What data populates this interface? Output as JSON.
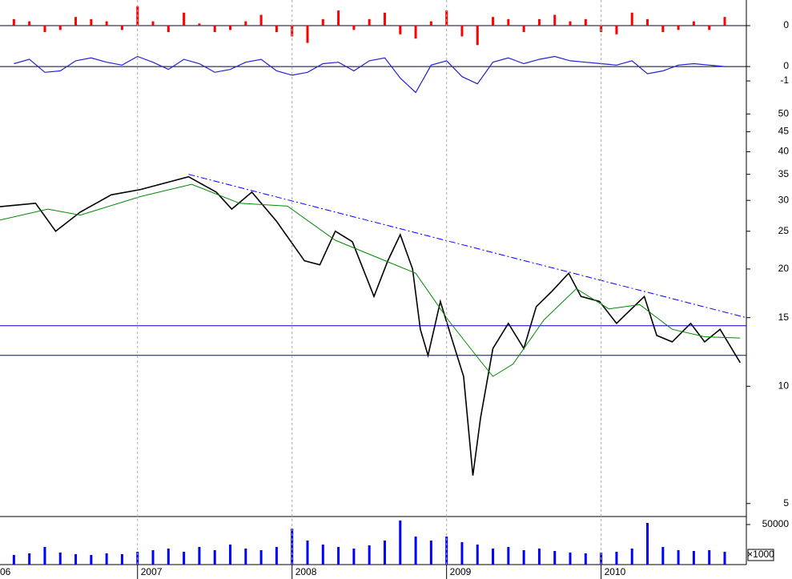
{
  "chart_data": [
    {
      "type": "bar",
      "color": "#ff0000",
      "xlim": [
        2006.11,
        2010.94
      ],
      "ylim": [
        -1,
        1
      ],
      "yticks": [
        0
      ],
      "x": [
        2006.2,
        2006.3,
        2006.4,
        2006.5,
        2006.6,
        2006.7,
        2006.8,
        2006.9,
        2007.0,
        2007.1,
        2007.2,
        2007.3,
        2007.4,
        2007.5,
        2007.6,
        2007.7,
        2007.8,
        2007.9,
        2008.0,
        2008.1,
        2008.2,
        2008.3,
        2008.4,
        2008.5,
        2008.6,
        2008.7,
        2008.8,
        2008.9,
        2009.0,
        2009.1,
        2009.2,
        2009.3,
        2009.4,
        2009.5,
        2009.6,
        2009.7,
        2009.8,
        2009.9,
        2010.0,
        2010.1,
        2010.2,
        2010.3,
        2010.4,
        2010.5,
        2010.6,
        2010.7,
        2010.8
      ],
      "values": [
        0.3,
        0.2,
        -0.3,
        -0.2,
        0.4,
        0.3,
        0.2,
        -0.2,
        0.9,
        0.2,
        -0.3,
        0.6,
        0.1,
        -0.3,
        -0.2,
        0.2,
        0.5,
        -0.3,
        -0.5,
        -0.8,
        0.3,
        0.7,
        -0.2,
        0.3,
        0.6,
        -0.4,
        -0.6,
        0.2,
        0.7,
        -0.5,
        -0.9,
        0.4,
        0.3,
        -0.3,
        0.3,
        0.5,
        0.2,
        0.3,
        -0.3,
        -0.4,
        0.6,
        0.3,
        -0.3,
        -0.2,
        0.2,
        -0.2,
        0.4
      ]
    },
    {
      "type": "line",
      "color": "#2222cc",
      "xlim": [
        2006.11,
        2010.94
      ],
      "ylim": [
        -2.44,
        1.17
      ],
      "yticks": [
        0,
        -1
      ],
      "x": [
        2006.2,
        2006.3,
        2006.4,
        2006.5,
        2006.6,
        2006.7,
        2006.8,
        2006.9,
        2007.0,
        2007.1,
        2007.2,
        2007.3,
        2007.4,
        2007.5,
        2007.6,
        2007.7,
        2007.8,
        2007.9,
        2008.0,
        2008.1,
        2008.2,
        2008.3,
        2008.4,
        2008.5,
        2008.6,
        2008.7,
        2008.8,
        2008.9,
        2009.0,
        2009.1,
        2009.2,
        2009.3,
        2009.4,
        2009.5,
        2009.6,
        2009.7,
        2009.8,
        2009.9,
        2010.0,
        2010.1,
        2010.2,
        2010.3,
        2010.4,
        2010.5,
        2010.6,
        2010.7,
        2010.8
      ],
      "values": [
        0.2,
        0.5,
        -0.4,
        -0.3,
        0.4,
        0.6,
        0.3,
        0.1,
        0.7,
        0.3,
        -0.2,
        0.5,
        0.2,
        -0.4,
        -0.2,
        0.3,
        0.5,
        -0.3,
        -0.6,
        -0.4,
        0.2,
        0.3,
        -0.3,
        0.4,
        0.6,
        -0.8,
        -1.8,
        0.1,
        0.4,
        -0.7,
        -1.2,
        0.3,
        0.6,
        0.2,
        0.5,
        0.7,
        0.4,
        0.3,
        0.2,
        0.1,
        0.4,
        -0.5,
        -0.3,
        0.1,
        0.2,
        0.1,
        0.0
      ]
    },
    {
      "type": "line",
      "log_scale": true,
      "xlim": [
        2006.11,
        2010.94
      ],
      "ylim": [
        4.63,
        53
      ],
      "yticks": [
        5,
        10,
        15,
        20,
        25,
        30,
        35,
        40,
        45,
        50
      ],
      "series": [
        {
          "color": "#000000",
          "x": [
            2006.11,
            2006.34,
            2006.47,
            2006.63,
            2006.83,
            2007.02,
            2007.33,
            2007.51,
            2007.61,
            2007.74,
            2007.9,
            2008.08,
            2008.18,
            2008.28,
            2008.39,
            2008.53,
            2008.62,
            2008.7,
            2008.78,
            2008.83,
            2008.88,
            2008.96,
            2009.04,
            2009.11,
            2009.17,
            2009.22,
            2009.3,
            2009.4,
            2009.5,
            2009.58,
            2009.68,
            2009.79,
            2009.87,
            2009.99,
            2010.1,
            2010.28,
            2010.36,
            2010.46,
            2010.58,
            2010.67,
            2010.77,
            2010.9
          ],
          "values": [
            28.9,
            29.5,
            25,
            28,
            31,
            32,
            34.5,
            31.5,
            28.5,
            31.5,
            26.5,
            21,
            20.5,
            25,
            23.5,
            17,
            21,
            24.5,
            20,
            14,
            12,
            16.5,
            13,
            10.6,
            5.9,
            8.3,
            12.5,
            14.5,
            12.5,
            16,
            17.5,
            19.5,
            17,
            16.5,
            14.5,
            17,
            13.5,
            13,
            14.5,
            13,
            14,
            11.5
          ]
        },
        {
          "color": "#008800",
          "x": [
            2006.11,
            2006.42,
            2006.63,
            2007.02,
            2007.35,
            2007.66,
            2007.97,
            2008.28,
            2008.54,
            2008.8,
            2009.01,
            2009.22,
            2009.3,
            2009.43,
            2009.63,
            2009.84,
            2010.05,
            2010.25,
            2010.46,
            2010.67,
            2010.9
          ],
          "values": [
            26.7,
            28.5,
            27.5,
            30.7,
            33,
            29.5,
            29,
            23.7,
            21.5,
            19.5,
            14.8,
            11.6,
            10.6,
            11.4,
            14.8,
            17.8,
            15.8,
            16.2,
            14,
            13.4,
            13.3
          ]
        }
      ],
      "hlines": [
        14.3,
        12.0
      ],
      "trendline": {
        "x": [
          2007.33,
          2010.94
        ],
        "values": [
          35,
          15
        ]
      }
    },
    {
      "type": "bar",
      "color": "#0000ff",
      "xlim": [
        2006.11,
        2010.94
      ],
      "ylim": [
        0,
        57000
      ],
      "yticks": [
        50000
      ],
      "unit_label": "×1000",
      "xticks": [
        {
          "value": 2006,
          "label": "06"
        },
        2007,
        2008,
        2009,
        2010
      ],
      "x": [
        2006.2,
        2006.3,
        2006.4,
        2006.5,
        2006.6,
        2006.7,
        2006.8,
        2006.9,
        2007.0,
        2007.1,
        2007.2,
        2007.3,
        2007.4,
        2007.5,
        2007.6,
        2007.7,
        2007.8,
        2007.9,
        2008.0,
        2008.1,
        2008.2,
        2008.3,
        2008.4,
        2008.5,
        2008.6,
        2008.7,
        2008.8,
        2008.9,
        2009.0,
        2009.1,
        2009.2,
        2009.3,
        2009.4,
        2009.5,
        2009.6,
        2009.7,
        2009.8,
        2009.9,
        2010.0,
        2010.1,
        2010.2,
        2010.3,
        2010.4,
        2010.5,
        2010.6,
        2010.7,
        2010.8
      ],
      "values": [
        12000,
        14000,
        22000,
        15000,
        13000,
        12000,
        14000,
        13000,
        16000,
        18000,
        20000,
        16000,
        22000,
        18000,
        25000,
        20000,
        18000,
        22000,
        45000,
        30000,
        25000,
        22000,
        20000,
        24000,
        30000,
        55000,
        35000,
        30000,
        35000,
        28000,
        25000,
        20000,
        22000,
        18000,
        20000,
        17000,
        15000,
        14000,
        15000,
        16000,
        20000,
        52000,
        22000,
        18000,
        17000,
        18000,
        16000
      ]
    }
  ]
}
